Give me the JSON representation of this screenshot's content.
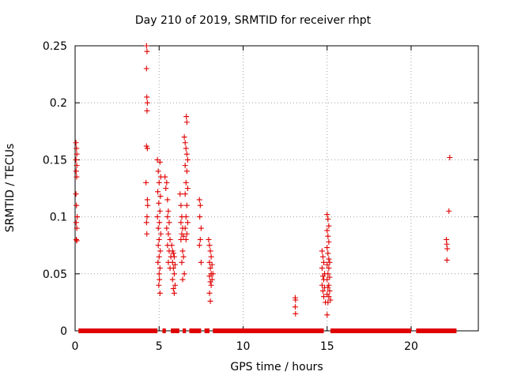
{
  "chart_data": {
    "type": "scatter",
    "title": "Day 210 of 2019, SRMTID for receiver rhpt",
    "xlabel": "GPS time / hours",
    "ylabel": "SRMTID / TECUs",
    "xlim": [
      0,
      24
    ],
    "ylim": [
      0,
      0.25
    ],
    "grid": true,
    "xticks": [
      0,
      5,
      10,
      15,
      20
    ],
    "xtick_labels": [
      "0",
      "5",
      "10",
      "15",
      "20"
    ],
    "yticks": [
      0,
      0.05,
      0.1,
      0.15,
      0.2,
      0.25
    ],
    "ytick_labels": [
      "0",
      "0.05",
      "0.1",
      "0.15",
      "0.2",
      "0.25"
    ],
    "marker": "+",
    "color": "#e00000",
    "grid_color": "#a0a0a0",
    "zero_line_segments": [
      [
        0.2,
        4.9
      ],
      [
        5.2,
        5.4
      ],
      [
        5.7,
        6.2
      ],
      [
        6.4,
        6.6
      ],
      [
        6.8,
        7.5
      ],
      [
        7.7,
        8.0
      ],
      [
        8.2,
        14.8
      ],
      [
        15.2,
        20.0
      ],
      [
        20.3,
        22.7
      ]
    ],
    "series": [
      {
        "name": "SRMTID",
        "points": [
          [
            0.05,
            0.165
          ],
          [
            0.08,
            0.16
          ],
          [
            0.1,
            0.155
          ],
          [
            0.05,
            0.15
          ],
          [
            0.1,
            0.145
          ],
          [
            0.06,
            0.14
          ],
          [
            0.09,
            0.135
          ],
          [
            0.05,
            0.12
          ],
          [
            0.08,
            0.11
          ],
          [
            0.12,
            0.1
          ],
          [
            0.06,
            0.095
          ],
          [
            0.1,
            0.09
          ],
          [
            0.07,
            0.08
          ],
          [
            0.1,
            0.079
          ],
          [
            4.25,
            0.25
          ],
          [
            4.28,
            0.245
          ],
          [
            4.25,
            0.23
          ],
          [
            4.27,
            0.205
          ],
          [
            4.3,
            0.2
          ],
          [
            4.28,
            0.193
          ],
          [
            4.25,
            0.162
          ],
          [
            4.3,
            0.16
          ],
          [
            4.22,
            0.13
          ],
          [
            4.3,
            0.115
          ],
          [
            4.32,
            0.11
          ],
          [
            4.28,
            0.1
          ],
          [
            4.25,
            0.095
          ],
          [
            4.27,
            0.085
          ],
          [
            4.9,
            0.15
          ],
          [
            5.05,
            0.148
          ],
          [
            4.95,
            0.14
          ],
          [
            5.1,
            0.135
          ],
          [
            5.0,
            0.13
          ],
          [
            4.92,
            0.122
          ],
          [
            5.08,
            0.118
          ],
          [
            4.98,
            0.112
          ],
          [
            5.05,
            0.105
          ],
          [
            4.9,
            0.1
          ],
          [
            5.02,
            0.095
          ],
          [
            4.95,
            0.09
          ],
          [
            5.1,
            0.085
          ],
          [
            5.0,
            0.08
          ],
          [
            4.95,
            0.075
          ],
          [
            5.07,
            0.07
          ],
          [
            5.0,
            0.065
          ],
          [
            4.93,
            0.06
          ],
          [
            5.05,
            0.055
          ],
          [
            5.0,
            0.05
          ],
          [
            5.02,
            0.045
          ],
          [
            4.98,
            0.04
          ],
          [
            5.05,
            0.033
          ],
          [
            5.35,
            0.135
          ],
          [
            5.45,
            0.13
          ],
          [
            5.4,
            0.125
          ],
          [
            5.5,
            0.115
          ],
          [
            5.55,
            0.105
          ],
          [
            5.5,
            0.1
          ],
          [
            5.6,
            0.095
          ],
          [
            5.45,
            0.09
          ],
          [
            5.55,
            0.085
          ],
          [
            5.65,
            0.08
          ],
          [
            5.5,
            0.075
          ],
          [
            5.6,
            0.07
          ],
          [
            5.7,
            0.065
          ],
          [
            5.55,
            0.06
          ],
          [
            5.65,
            0.055
          ],
          [
            5.75,
            0.075
          ],
          [
            5.8,
            0.07
          ],
          [
            5.85,
            0.068
          ],
          [
            5.9,
            0.065
          ],
          [
            5.8,
            0.06
          ],
          [
            5.95,
            0.058
          ],
          [
            5.85,
            0.055
          ],
          [
            5.9,
            0.05
          ],
          [
            5.8,
            0.045
          ],
          [
            5.95,
            0.04
          ],
          [
            5.85,
            0.037
          ],
          [
            5.9,
            0.033
          ],
          [
            6.25,
            0.12
          ],
          [
            6.3,
            0.11
          ],
          [
            6.35,
            0.1
          ],
          [
            6.3,
            0.095
          ],
          [
            6.4,
            0.09
          ],
          [
            6.35,
            0.085
          ],
          [
            6.45,
            0.083
          ],
          [
            6.3,
            0.08
          ],
          [
            6.4,
            0.07
          ],
          [
            6.45,
            0.065
          ],
          [
            6.35,
            0.06
          ],
          [
            6.5,
            0.05
          ],
          [
            6.4,
            0.045
          ],
          [
            6.5,
            0.17
          ],
          [
            6.55,
            0.165
          ],
          [
            6.6,
            0.16
          ],
          [
            6.65,
            0.155
          ],
          [
            6.7,
            0.15
          ],
          [
            6.55,
            0.145
          ],
          [
            6.65,
            0.14
          ],
          [
            6.6,
            0.13
          ],
          [
            6.7,
            0.125
          ],
          [
            6.55,
            0.12
          ],
          [
            6.65,
            0.11
          ],
          [
            6.6,
            0.1
          ],
          [
            6.7,
            0.095
          ],
          [
            6.55,
            0.09
          ],
          [
            6.65,
            0.085
          ],
          [
            6.6,
            0.08
          ],
          [
            6.62,
            0.188
          ],
          [
            6.65,
            0.183
          ],
          [
            7.4,
            0.115
          ],
          [
            7.45,
            0.11
          ],
          [
            7.42,
            0.1
          ],
          [
            7.5,
            0.09
          ],
          [
            7.45,
            0.08
          ],
          [
            7.4,
            0.075
          ],
          [
            7.5,
            0.06
          ],
          [
            7.95,
            0.08
          ],
          [
            8.0,
            0.075
          ],
          [
            8.05,
            0.07
          ],
          [
            8.1,
            0.065
          ],
          [
            8.0,
            0.06
          ],
          [
            8.15,
            0.058
          ],
          [
            8.05,
            0.055
          ],
          [
            8.1,
            0.05
          ],
          [
            8.0,
            0.048
          ],
          [
            8.15,
            0.045
          ],
          [
            8.05,
            0.043
          ],
          [
            8.1,
            0.04
          ],
          [
            8.2,
            0.05
          ],
          [
            8.0,
            0.033
          ],
          [
            8.05,
            0.026
          ],
          [
            13.1,
            0.029
          ],
          [
            13.12,
            0.027
          ],
          [
            13.1,
            0.021
          ],
          [
            13.12,
            0.015
          ],
          [
            14.7,
            0.07
          ],
          [
            14.75,
            0.065
          ],
          [
            14.8,
            0.06
          ],
          [
            14.7,
            0.055
          ],
          [
            14.85,
            0.05
          ],
          [
            14.75,
            0.048
          ],
          [
            14.8,
            0.045
          ],
          [
            14.7,
            0.04
          ],
          [
            14.85,
            0.038
          ],
          [
            14.75,
            0.035
          ],
          [
            14.8,
            0.03
          ],
          [
            14.9,
            0.025
          ],
          [
            15.0,
            0.102
          ],
          [
            15.05,
            0.098
          ],
          [
            15.1,
            0.092
          ],
          [
            15.0,
            0.088
          ],
          [
            15.05,
            0.083
          ],
          [
            15.1,
            0.078
          ],
          [
            15.0,
            0.073
          ],
          [
            15.05,
            0.068
          ],
          [
            15.1,
            0.063
          ],
          [
            15.15,
            0.06
          ],
          [
            15.0,
            0.058
          ],
          [
            15.1,
            0.055
          ],
          [
            15.05,
            0.05
          ],
          [
            15.15,
            0.047
          ],
          [
            15.0,
            0.045
          ],
          [
            15.1,
            0.04
          ],
          [
            15.05,
            0.038
          ],
          [
            15.15,
            0.035
          ],
          [
            15.0,
            0.032
          ],
          [
            15.1,
            0.03
          ],
          [
            15.2,
            0.027
          ],
          [
            15.05,
            0.025
          ],
          [
            15.0,
            0.014
          ],
          [
            22.1,
            0.08
          ],
          [
            22.12,
            0.076
          ],
          [
            22.15,
            0.072
          ],
          [
            22.13,
            0.062
          ],
          [
            22.3,
            0.152
          ],
          [
            22.25,
            0.105
          ]
        ]
      }
    ]
  }
}
